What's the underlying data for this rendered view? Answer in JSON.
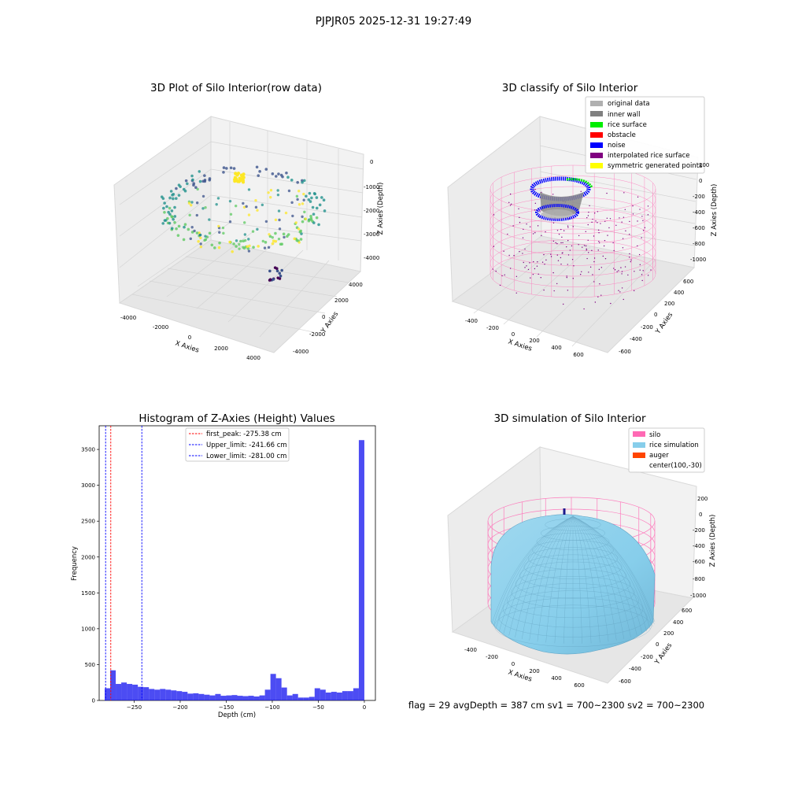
{
  "figure": {
    "title": "PJPJR05 2025-12-31 19:27:49",
    "footer": "flag = 29  avgDepth = 387 cm  sv1 = 700~2300  sv2 = 700~2300"
  },
  "colors": {
    "raw_gradient": [
      "#440154",
      "#3b528b",
      "#21918c",
      "#5ec962",
      "#fde725"
    ],
    "original": "#b0b0b0",
    "inner_wall": "#808080",
    "rice_surface": "#00ee00",
    "obstacle": "#ff0000",
    "noise": "#0000ff",
    "interpolated": "#800080",
    "symmetric": "#ffff00",
    "silo": "#ff69b4",
    "rice_sim": "#87ceeb",
    "auger": "#ff4500",
    "hist_bar": "#0000ee"
  },
  "chart_data": [
    {
      "type": "scatter",
      "title": "3D Plot of Silo Interior(row data)",
      "xlabel": "X Axies",
      "ylabel": "Y Axies",
      "zlabel": "Z Axies (Depth)",
      "xticks": [
        "-4000",
        "-2000",
        "0",
        "2000",
        "4000"
      ],
      "yticks": [
        "-4000",
        "-2000",
        "0",
        "2000",
        "4000"
      ],
      "zticks": [
        "0",
        "-1000",
        "-2000",
        "-3000",
        "-4000"
      ]
    },
    {
      "type": "scatter",
      "title": "3D classify of Silo Interior",
      "xlabel": "X Axies",
      "ylabel": "Y Axies",
      "zlabel": "Z Axies (Depth)",
      "xticks": [
        "-400",
        "-200",
        "0",
        "200",
        "400",
        "600"
      ],
      "yticks": [
        "-600",
        "-400",
        "-200",
        "0",
        "200",
        "400",
        "600"
      ],
      "zticks": [
        "200",
        "0",
        "-200",
        "-400",
        "-600",
        "-800",
        "-1000"
      ],
      "legend": [
        "original data",
        "inner wall",
        "rice surface",
        "obstacle",
        "noise",
        "interpolated rice surface",
        "symmetric generated points"
      ]
    },
    {
      "type": "bar",
      "title": "Histogram of Z-Axies (Height) Values",
      "xlabel": "Depth (cm)",
      "ylabel": "Frequency",
      "xlim": [
        -288,
        12
      ],
      "ylim": [
        0,
        3830
      ],
      "xticks": [
        -250,
        -200,
        -150,
        -100,
        -50,
        0
      ],
      "xtick_labels": [
        "−250",
        "−200",
        "−150",
        "−100",
        "−50",
        "0"
      ],
      "yticks": [
        0,
        500,
        1000,
        1500,
        2000,
        2500,
        3000,
        3500
      ],
      "bin_width": 6,
      "bins_left": [
        -282,
        -276,
        -270,
        -264,
        -258,
        -252,
        -246,
        -240,
        -234,
        -228,
        -222,
        -216,
        -210,
        -204,
        -198,
        -192,
        -186,
        -180,
        -174,
        -168,
        -162,
        -156,
        -150,
        -144,
        -138,
        -132,
        -126,
        -120,
        -114,
        -108,
        -102,
        -96,
        -90,
        -84,
        -78,
        -72,
        -66,
        -60,
        -54,
        -48,
        -42,
        -36,
        -30,
        -24,
        -18,
        -12,
        -6
      ],
      "values": [
        170,
        420,
        230,
        250,
        230,
        220,
        190,
        185,
        160,
        150,
        160,
        150,
        140,
        130,
        120,
        95,
        100,
        90,
        80,
        70,
        90,
        65,
        70,
        75,
        65,
        60,
        65,
        55,
        70,
        150,
        370,
        310,
        180,
        70,
        90,
        40,
        40,
        50,
        170,
        150,
        110,
        120,
        110,
        130,
        130,
        170,
        3630
      ],
      "vlines": [
        {
          "x": -275.38,
          "style": "red",
          "label": "first_peak: -275.38 cm"
        },
        {
          "x": -241.66,
          "style": "blue",
          "label": "Upper_limit: -241.66 cm"
        },
        {
          "x": -281.0,
          "style": "blue",
          "label": "Lower_limit: -281.00 cm"
        }
      ]
    },
    {
      "type": "area",
      "title": "3D simulation of Silo Interior",
      "xlabel": "X Axies",
      "ylabel": "Y Axies",
      "zlabel": "Z Axies (Depth)",
      "xticks": [
        "-400",
        "-200",
        "0",
        "200",
        "400",
        "600"
      ],
      "yticks": [
        "-600",
        "-400",
        "-200",
        "0",
        "200",
        "400",
        "600"
      ],
      "zticks": [
        "200",
        "0",
        "-200",
        "-400",
        "-600",
        "-800",
        "-1000"
      ],
      "legend": [
        "silo",
        "rice simulation",
        "auger",
        "center(100,-30)"
      ]
    }
  ]
}
